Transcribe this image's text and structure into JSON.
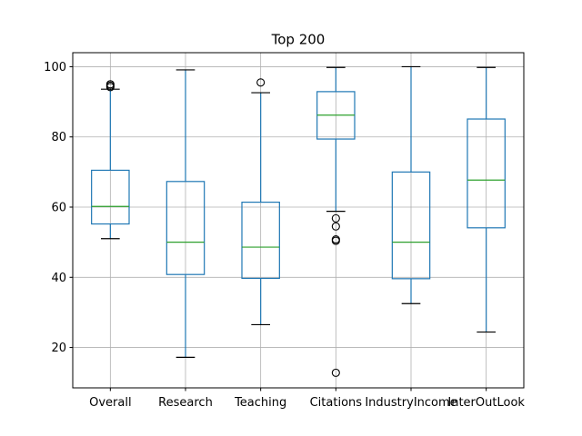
{
  "chart_data": {
    "type": "box",
    "title": "Top 200",
    "xlabel": "",
    "ylabel": "",
    "ylim": [
      8.5,
      104
    ],
    "yticks": [
      20,
      40,
      60,
      80,
      100
    ],
    "grid": true,
    "categories": [
      "Overall",
      "Research",
      "Teaching",
      "Citations",
      "IndustryIncome",
      "InterOutLook"
    ],
    "boxes": [
      {
        "whisker_low": 51.0,
        "q1": 55.2,
        "median": 60.2,
        "q3": 70.5,
        "whisker_high": 93.6,
        "outliers": [
          94.2,
          94.6,
          95.0
        ]
      },
      {
        "whisker_low": 17.2,
        "q1": 40.8,
        "median": 50.0,
        "q3": 67.3,
        "whisker_high": 99.1,
        "outliers": []
      },
      {
        "whisker_low": 26.5,
        "q1": 39.7,
        "median": 48.6,
        "q3": 61.4,
        "whisker_high": 92.6,
        "outliers": [
          95.5
        ]
      },
      {
        "whisker_low": 58.8,
        "q1": 79.4,
        "median": 86.2,
        "q3": 92.9,
        "whisker_high": 99.8,
        "outliers": [
          56.8,
          54.5,
          50.8,
          50.4,
          12.8
        ]
      },
      {
        "whisker_low": 32.5,
        "q1": 39.6,
        "median": 50.0,
        "q3": 70.0,
        "whisker_high": 100.0,
        "outliers": []
      },
      {
        "whisker_low": 24.4,
        "q1": 54.1,
        "median": 67.7,
        "q3": 85.1,
        "whisker_high": 99.8,
        "outliers": []
      }
    ]
  }
}
